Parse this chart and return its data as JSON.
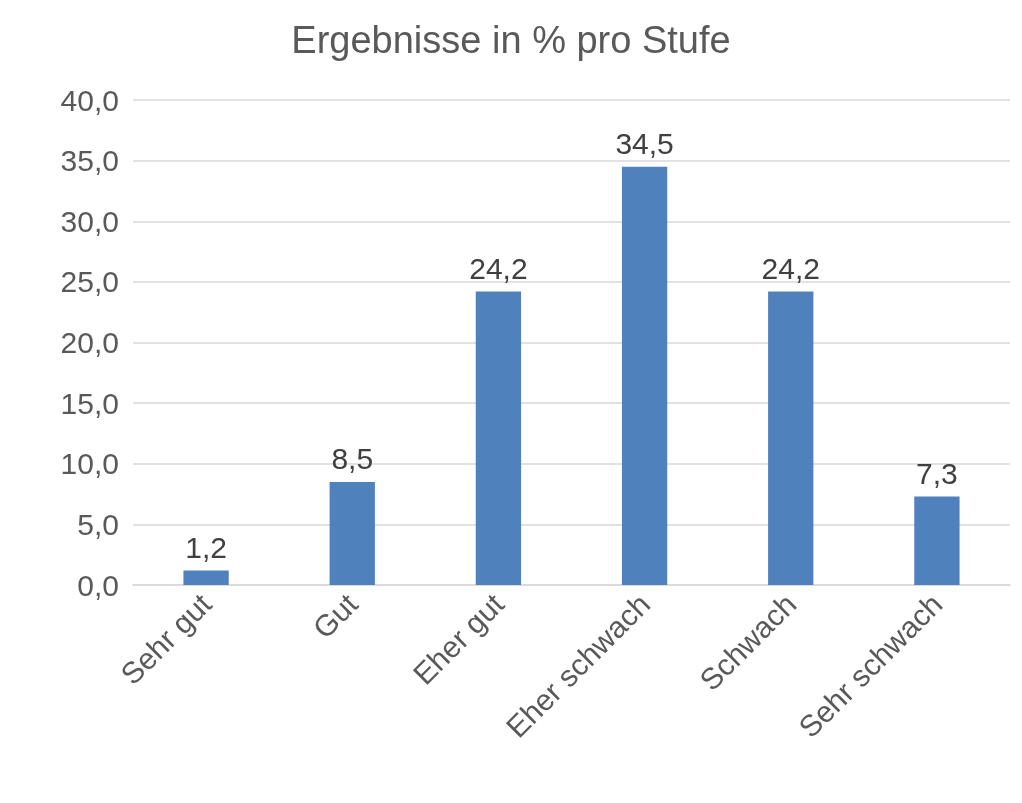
{
  "chart_data": {
    "type": "bar",
    "title": "Ergebnisse in % pro Stufe",
    "categories": [
      "Sehr gut",
      "Gut",
      "Eher gut",
      "Eher schwach",
      "Schwach",
      "Sehr schwach"
    ],
    "values": [
      1.2,
      8.5,
      24.2,
      34.5,
      24.2,
      7.3
    ],
    "value_labels": [
      "1,2",
      "8,5",
      "24,2",
      "34,5",
      "24,2",
      "7,3"
    ],
    "color": "#4f81bd",
    "ylim": [
      0,
      40
    ],
    "yticks": [
      {
        "value": 0,
        "label": "0,0"
      },
      {
        "value": 5,
        "label": "5,0"
      },
      {
        "value": 10,
        "label": "10,0"
      },
      {
        "value": 15,
        "label": "15,0"
      },
      {
        "value": 20,
        "label": "20,0"
      },
      {
        "value": 25,
        "label": "25,0"
      },
      {
        "value": 30,
        "label": "30,0"
      },
      {
        "value": 35,
        "label": "35,0"
      },
      {
        "value": 40,
        "label": "40,0"
      }
    ],
    "grid": "y"
  }
}
